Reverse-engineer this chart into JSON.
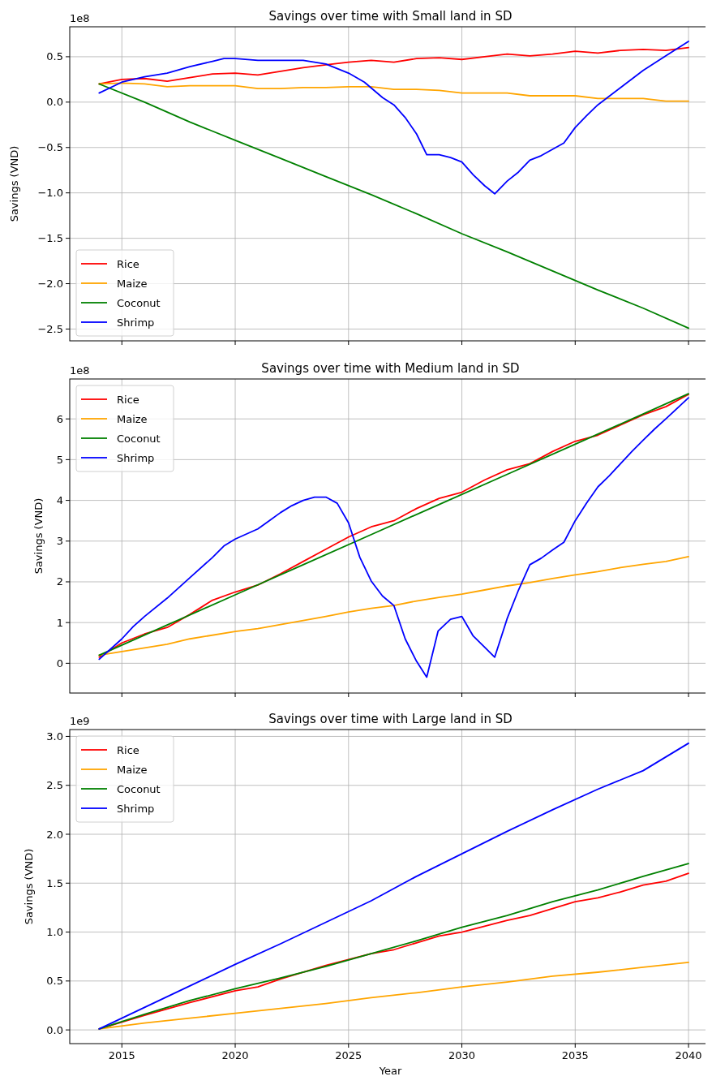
{
  "chart_data": [
    {
      "type": "line",
      "title": "Savings over time with Small land in SD",
      "ylabel": "Savings (VND)",
      "annotations": [
        "1e8"
      ],
      "xlim": [
        2012.7,
        2041.0
      ],
      "ylim": [
        -2.63,
        0.83
      ],
      "xticks": [
        2015,
        2020,
        2025,
        2030,
        2035,
        2040
      ],
      "yticks": [
        {
          "value": -2.5,
          "label": "−2.5"
        },
        {
          "value": -2.0,
          "label": "−2.0"
        },
        {
          "value": -1.5,
          "label": "−1.5"
        },
        {
          "value": -1.0,
          "label": "−1.0"
        },
        {
          "value": -0.5,
          "label": "−0.5"
        },
        {
          "value": 0,
          "label": "0.0"
        },
        0.5
      ],
      "grid": true,
      "legend": "bottom left",
      "tick_labels": "y",
      "line_style": "solid",
      "series": [
        {
          "name": "Rice",
          "color": "#ff0000",
          "x": [
            2014,
            2015,
            2016,
            2017,
            2018,
            2019,
            2020,
            2021,
            2022,
            2023,
            2024,
            2025,
            2026,
            2027,
            2028,
            2029,
            2030,
            2031,
            2032,
            2033,
            2034,
            2035,
            2036,
            2037,
            2038,
            2039,
            2040
          ],
          "values": [
            0.2,
            0.25,
            0.26,
            0.23,
            0.27,
            0.31,
            0.32,
            0.3,
            0.34,
            0.38,
            0.41,
            0.44,
            0.46,
            0.44,
            0.48,
            0.49,
            0.47,
            0.5,
            0.53,
            0.51,
            0.53,
            0.56,
            0.54,
            0.57,
            0.58,
            0.57,
            0.6
          ]
        },
        {
          "name": "Maize",
          "color": "#ffa500",
          "x": [
            2014,
            2015,
            2016,
            2017,
            2018,
            2019,
            2020,
            2021,
            2022,
            2023,
            2024,
            2025,
            2026,
            2027,
            2028,
            2029,
            2030,
            2031,
            2032,
            2033,
            2034,
            2035,
            2036,
            2037,
            2038,
            2039,
            2040
          ],
          "values": [
            0.2,
            0.21,
            0.2,
            0.17,
            0.18,
            0.18,
            0.18,
            0.15,
            0.15,
            0.16,
            0.16,
            0.17,
            0.17,
            0.14,
            0.14,
            0.13,
            0.1,
            0.1,
            0.1,
            0.07,
            0.07,
            0.07,
            0.04,
            0.04,
            0.04,
            0.01,
            0.01
          ]
        },
        {
          "name": "Coconut",
          "color": "#008000",
          "x": [
            2014,
            2016,
            2018,
            2020,
            2022,
            2024,
            2026,
            2028,
            2030,
            2032,
            2034,
            2036,
            2038,
            2040
          ],
          "values": [
            0.2,
            0.0,
            -0.22,
            -0.42,
            -0.62,
            -0.82,
            -1.02,
            -1.23,
            -1.45,
            -1.65,
            -1.86,
            -2.07,
            -2.27,
            -2.49
          ]
        },
        {
          "name": "Shrimp",
          "color": "#0000ff",
          "x": [
            2014,
            2015,
            2016,
            2017,
            2018,
            2019,
            2019.5,
            2020,
            2021,
            2022,
            2023,
            2024,
            2025,
            2025.7,
            2026.5,
            2027,
            2027.5,
            2028,
            2028.45,
            2029,
            2029.5,
            2030,
            2030.5,
            2031,
            2031.45,
            2032,
            2032.5,
            2033,
            2033.5,
            2034,
            2034.5,
            2035,
            2035.5,
            2036,
            2037,
            2038,
            2039,
            2040
          ],
          "values": [
            0.1,
            0.22,
            0.28,
            0.32,
            0.39,
            0.45,
            0.48,
            0.48,
            0.46,
            0.46,
            0.46,
            0.42,
            0.32,
            0.22,
            0.05,
            -0.03,
            -0.17,
            -0.35,
            -0.58,
            -0.58,
            -0.61,
            -0.66,
            -0.8,
            -0.92,
            -1.01,
            -0.87,
            -0.77,
            -0.64,
            -0.59,
            -0.52,
            -0.45,
            -0.28,
            -0.15,
            -0.03,
            0.16,
            0.35,
            0.51,
            0.67
          ]
        }
      ]
    },
    {
      "type": "line",
      "title": "Savings over time with Medium land in SD",
      "ylabel": "Savings (VND)",
      "annotations": [
        "1e8"
      ],
      "xlim": [
        2012.7,
        2041.0
      ],
      "ylim": [
        -0.73,
        6.98
      ],
      "xticks": [
        2015,
        2020,
        2025,
        2030,
        2035,
        2040
      ],
      "yticks": [
        0,
        1,
        2,
        3,
        4,
        5,
        6
      ],
      "grid": true,
      "legend": "top left",
      "tick_labels": "y",
      "line_style": "solid",
      "series": [
        {
          "name": "Rice",
          "color": "#ff0000",
          "x": [
            2014,
            2015,
            2016,
            2017,
            2018,
            2019,
            2020,
            2021,
            2022,
            2023,
            2024,
            2025,
            2026,
            2027,
            2028,
            2029,
            2030,
            2031,
            2032,
            2033,
            2034,
            2035,
            2036,
            2037,
            2038,
            2039,
            2040
          ],
          "values": [
            0.15,
            0.5,
            0.72,
            0.88,
            1.2,
            1.55,
            1.75,
            1.92,
            2.2,
            2.5,
            2.8,
            3.1,
            3.35,
            3.5,
            3.8,
            4.05,
            4.2,
            4.5,
            4.75,
            4.9,
            5.2,
            5.45,
            5.6,
            5.85,
            6.1,
            6.3,
            6.6
          ]
        },
        {
          "name": "Maize",
          "color": "#ffa500",
          "x": [
            2014,
            2016,
            2017,
            2018,
            2020,
            2021,
            2022,
            2024,
            2025,
            2026,
            2027,
            2028,
            2029,
            2030,
            2031,
            2032,
            2033,
            2034,
            2035,
            2036,
            2037,
            2038,
            2039,
            2040
          ],
          "values": [
            0.2,
            0.38,
            0.47,
            0.6,
            0.78,
            0.85,
            0.95,
            1.15,
            1.26,
            1.35,
            1.42,
            1.53,
            1.62,
            1.7,
            1.8,
            1.9,
            1.98,
            2.08,
            2.17,
            2.25,
            2.35,
            2.43,
            2.5,
            2.62
          ]
        },
        {
          "name": "Coconut",
          "color": "#008000",
          "x": [
            2014,
            2017,
            2020,
            2023,
            2026,
            2029,
            2032,
            2035,
            2038,
            2040
          ],
          "values": [
            0.2,
            0.94,
            1.68,
            2.42,
            3.16,
            3.9,
            4.64,
            5.38,
            6.12,
            6.62
          ]
        },
        {
          "name": "Shrimp",
          "color": "#0000ff",
          "x": [
            2014,
            2015,
            2015.5,
            2016,
            2017,
            2018,
            2019,
            2019.5,
            2020,
            2021,
            2021.5,
            2022,
            2022.5,
            2023,
            2023.5,
            2024,
            2024.5,
            2025,
            2025.5,
            2026,
            2026.5,
            2027,
            2027.5,
            2028,
            2028.45,
            2028.95,
            2029.5,
            2030,
            2030.5,
            2031,
            2031.45,
            2032,
            2032.5,
            2033,
            2033.5,
            2034,
            2034.5,
            2035,
            2035.5,
            2036,
            2036.5,
            2037,
            2037.5,
            2038,
            2038.5,
            2039,
            2040
          ],
          "values": [
            0.1,
            0.6,
            0.9,
            1.15,
            1.6,
            2.1,
            2.6,
            2.88,
            3.05,
            3.3,
            3.5,
            3.7,
            3.87,
            4.0,
            4.08,
            4.08,
            3.93,
            3.45,
            2.6,
            2.02,
            1.65,
            1.42,
            0.6,
            0.05,
            -0.34,
            0.79,
            1.08,
            1.15,
            0.67,
            0.4,
            0.15,
            1.1,
            1.8,
            2.42,
            2.58,
            2.78,
            2.97,
            3.5,
            3.93,
            4.33,
            4.6,
            4.9,
            5.2,
            5.48,
            5.75,
            6.0,
            6.52
          ]
        }
      ]
    },
    {
      "type": "line",
      "title": "Savings over time with Large land in SD",
      "xlabel": "Year",
      "ylabel": "Savings (VND)",
      "annotations": [
        "1e9"
      ],
      "xlim": [
        2012.7,
        2041.0
      ],
      "ylim": [
        -0.14,
        3.07
      ],
      "xticks": [
        2015,
        2020,
        2025,
        2030,
        2035,
        2040
      ],
      "yticks": [
        {
          "value": 0,
          "label": "0.0"
        },
        0.5,
        {
          "value": 1,
          "label": "1.0"
        },
        1.5,
        {
          "value": 2,
          "label": "2.0"
        },
        2.5,
        {
          "value": 3,
          "label": "3.0"
        }
      ],
      "grid": true,
      "legend": "top left",
      "line_style": "solid",
      "series": [
        {
          "name": "Rice",
          "color": "#ff0000",
          "x": [
            2014,
            2016,
            2018,
            2020,
            2021,
            2022,
            2024,
            2026,
            2027,
            2028,
            2029,
            2030,
            2031,
            2032,
            2033,
            2034,
            2035,
            2036,
            2037,
            2038,
            2039,
            2040
          ],
          "values": [
            0.01,
            0.15,
            0.28,
            0.4,
            0.44,
            0.52,
            0.66,
            0.78,
            0.82,
            0.89,
            0.96,
            1.0,
            1.06,
            1.12,
            1.17,
            1.24,
            1.31,
            1.35,
            1.41,
            1.48,
            1.52,
            1.6
          ]
        },
        {
          "name": "Maize",
          "color": "#ffa500",
          "x": [
            2014,
            2016,
            2018,
            2020,
            2022,
            2024,
            2026,
            2028,
            2030,
            2032,
            2034,
            2036,
            2038,
            2040
          ],
          "values": [
            0.01,
            0.07,
            0.12,
            0.17,
            0.22,
            0.27,
            0.33,
            0.38,
            0.44,
            0.49,
            0.55,
            0.59,
            0.64,
            0.69
          ]
        },
        {
          "name": "Coconut",
          "color": "#008000",
          "x": [
            2014,
            2016,
            2018,
            2020,
            2022,
            2024,
            2026,
            2028,
            2030,
            2032,
            2034,
            2036,
            2038,
            2040
          ],
          "values": [
            0.01,
            0.16,
            0.3,
            0.42,
            0.53,
            0.65,
            0.78,
            0.91,
            1.05,
            1.17,
            1.31,
            1.43,
            1.57,
            1.7
          ]
        },
        {
          "name": "Shrimp",
          "color": "#0000ff",
          "x": [
            2014,
            2016,
            2018,
            2020,
            2022,
            2024,
            2026,
            2028,
            2030,
            2032,
            2034,
            2036,
            2038,
            2040
          ],
          "values": [
            0.01,
            0.23,
            0.45,
            0.67,
            0.88,
            1.1,
            1.32,
            1.57,
            1.8,
            2.03,
            2.25,
            2.46,
            2.65,
            2.93
          ]
        }
      ]
    }
  ]
}
